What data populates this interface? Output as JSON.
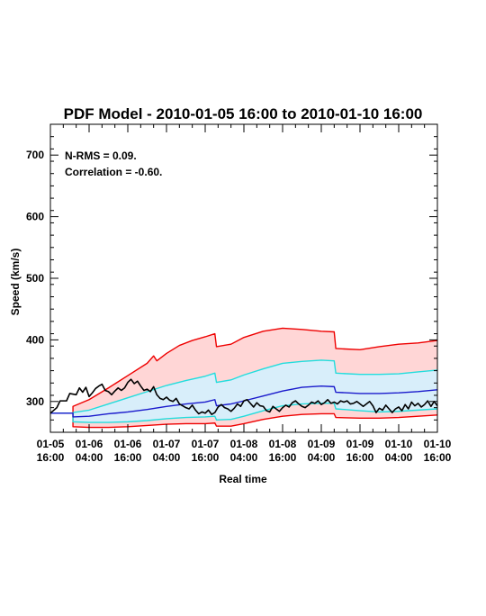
{
  "chart_data": {
    "type": "line",
    "title": "PDF Model - 2010-01-05 16:00 to 2010-01-10 16:00",
    "xlabel": "Real time",
    "ylabel": "Speed (km/s)",
    "annotations": [
      "N-RMS = 0.09.",
      "Correlation = -0.60."
    ],
    "x_ticks": [
      {
        "t": 0,
        "line1": "01-05",
        "line2": "16:00"
      },
      {
        "t": 12,
        "line1": "01-06",
        "line2": "04:00"
      },
      {
        "t": 24,
        "line1": "01-06",
        "line2": "16:00"
      },
      {
        "t": 36,
        "line1": "01-07",
        "line2": "04:00"
      },
      {
        "t": 48,
        "line1": "01-07",
        "line2": "16:00"
      },
      {
        "t": 60,
        "line1": "01-08",
        "line2": "04:00"
      },
      {
        "t": 72,
        "line1": "01-08",
        "line2": "16:00"
      },
      {
        "t": 84,
        "line1": "01-09",
        "line2": "04:00"
      },
      {
        "t": 96,
        "line1": "01-09",
        "line2": "16:00"
      },
      {
        "t": 108,
        "line1": "01-10",
        "line2": "04:00"
      },
      {
        "t": 120,
        "line1": "01-10",
        "line2": "16:00"
      }
    ],
    "y_ticks": [
      300,
      400,
      500,
      600,
      700
    ],
    "xlim_hours": [
      0,
      120
    ],
    "ylim": [
      250,
      750
    ],
    "colors": {
      "outer_band_fill": "#ffd6d6",
      "inner_band_fill": "#d8eefa",
      "outer_bound_line": "#ee0000",
      "inner_bound_line": "#22dddd",
      "median_line": "#1a1acc",
      "observed_line": "#000000"
    },
    "series": [
      {
        "role": "upper_outer",
        "color": "#ee0000",
        "x": [
          0,
          7,
          7,
          12,
          18,
          24,
          30,
          32,
          33,
          36,
          40,
          44,
          48,
          51,
          51.5,
          56,
          60,
          66,
          72,
          78,
          84,
          88,
          88.5,
          96,
          102,
          108,
          114,
          120
        ],
        "y": [
          281,
          281,
          292,
          303,
          322,
          342,
          362,
          374,
          366,
          378,
          391,
          399,
          405,
          410,
          389,
          393,
          404,
          414,
          419,
          417,
          414,
          413,
          386,
          384,
          389,
          393,
          395,
          399
        ]
      },
      {
        "role": "upper_inner",
        "color": "#22dddd",
        "x": [
          0,
          7,
          7,
          12,
          18,
          24,
          30,
          36,
          42,
          48,
          51,
          51.5,
          56,
          60,
          66,
          72,
          78,
          84,
          88,
          88.5,
          96,
          102,
          108,
          114,
          120
        ],
        "y": [
          281,
          281,
          282,
          286,
          296,
          306,
          316,
          326,
          334,
          341,
          346,
          331,
          335,
          343,
          353,
          362,
          365,
          367,
          366,
          346,
          344,
          344,
          345,
          348,
          351
        ]
      },
      {
        "role": "median",
        "color": "#1a1acc",
        "x": [
          0,
          7,
          7,
          12,
          18,
          24,
          30,
          36,
          42,
          48,
          51,
          51.5,
          56,
          60,
          66,
          72,
          78,
          84,
          88,
          88.5,
          96,
          102,
          108,
          114,
          120
        ],
        "y": [
          281,
          281,
          275,
          276,
          280,
          283,
          287,
          292,
          296,
          299,
          303,
          293,
          296,
          301,
          309,
          317,
          323,
          325,
          324,
          315,
          313,
          313,
          314,
          316,
          319
        ]
      },
      {
        "role": "lower_inner",
        "color": "#22dddd",
        "x": [
          0,
          7,
          7,
          12,
          18,
          24,
          30,
          36,
          42,
          48,
          51,
          51.5,
          56,
          60,
          66,
          72,
          78,
          84,
          88,
          88.5,
          96,
          102,
          108,
          114,
          120
        ],
        "y": [
          281,
          281,
          267,
          266,
          266,
          267,
          269,
          272,
          274,
          275,
          276,
          270,
          271,
          276,
          285,
          293,
          296,
          297,
          297,
          288,
          285,
          283,
          284,
          286,
          288
        ]
      },
      {
        "role": "lower_outer",
        "color": "#ee0000",
        "x": [
          0,
          7,
          7,
          12,
          18,
          24,
          30,
          36,
          42,
          48,
          51,
          51.5,
          56,
          60,
          66,
          72,
          78,
          84,
          88,
          88.5,
          96,
          102,
          108,
          114,
          120
        ],
        "y": [
          281,
          281,
          259,
          258,
          258,
          259,
          261,
          263,
          264,
          264,
          265,
          260,
          260,
          264,
          271,
          276,
          279,
          280,
          280,
          274,
          273,
          273,
          274,
          276,
          278
        ]
      },
      {
        "role": "observed",
        "color": "#000000",
        "x": [
          0,
          2,
          3,
          5,
          6,
          8,
          9,
          10,
          11,
          12,
          13,
          14,
          15,
          16,
          17,
          18,
          19,
          20,
          21,
          22,
          23,
          24,
          25,
          26,
          27,
          28,
          29,
          30,
          31,
          32,
          33,
          34,
          35,
          36,
          37,
          38,
          39,
          40,
          41,
          42,
          43,
          44,
          45,
          46,
          47,
          48,
          49,
          50,
          51,
          52,
          53,
          54,
          55,
          56,
          57,
          58,
          59,
          60,
          61,
          62,
          63,
          64,
          65,
          66,
          67,
          68,
          69,
          70,
          71,
          72,
          73,
          74,
          75,
          76,
          77,
          78,
          79,
          80,
          81,
          82,
          83,
          84,
          85,
          86,
          87,
          88,
          89,
          90,
          91,
          92,
          93,
          94,
          95,
          96,
          97,
          98,
          99,
          100,
          101,
          102,
          103,
          104,
          105,
          106,
          107,
          108,
          109,
          110,
          111,
          112,
          113,
          114,
          115,
          116,
          117,
          118,
          119,
          120
        ],
        "y": [
          281,
          290,
          301,
          301,
          313,
          311,
          322,
          315,
          323,
          308,
          314,
          321,
          325,
          328,
          318,
          316,
          311,
          317,
          322,
          318,
          322,
          331,
          336,
          329,
          333,
          325,
          318,
          320,
          316,
          324,
          311,
          305,
          303,
          307,
          302,
          300,
          305,
          296,
          293,
          290,
          288,
          294,
          286,
          280,
          283,
          281,
          286,
          279,
          282,
          291,
          295,
          290,
          288,
          284,
          289,
          296,
          292,
          301,
          303,
          297,
          291,
          298,
          293,
          292,
          285,
          283,
          292,
          288,
          284,
          290,
          294,
          291,
          298,
          301,
          296,
          292,
          290,
          294,
          299,
          297,
          301,
          295,
          298,
          303,
          297,
          299,
          296,
          301,
          299,
          301,
          296,
          297,
          300,
          296,
          292,
          296,
          300,
          293,
          282,
          289,
          286,
          294,
          288,
          282,
          288,
          291,
          285,
          295,
          288,
          299,
          293,
          297,
          291,
          295,
          301,
          292,
          300,
          293
        ]
      }
    ]
  }
}
